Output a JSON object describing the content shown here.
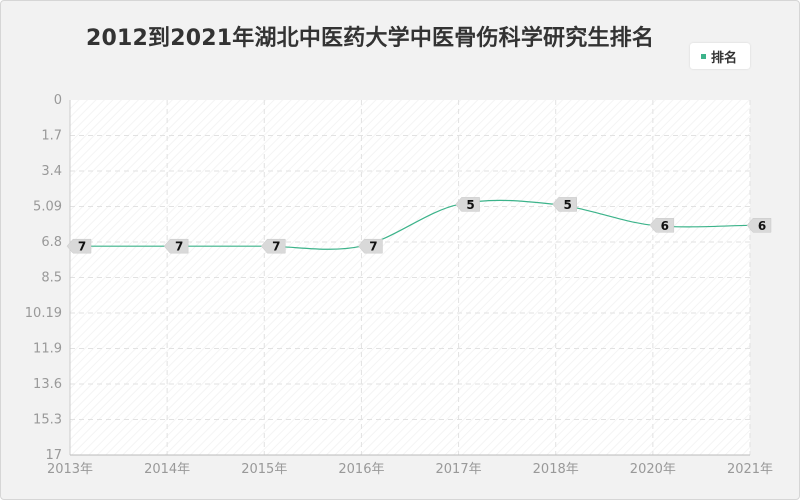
{
  "chart_data": {
    "type": "line",
    "title": "2012到2021年湖北中医药大学中医骨伤科学研究生排名",
    "categories": [
      "2013年",
      "2014年",
      "2015年",
      "2016年",
      "2017年",
      "2018年",
      "2020年",
      "2021年"
    ],
    "series": [
      {
        "name": "排名",
        "values": [
          7,
          7,
          7,
          7,
          5,
          5,
          6,
          6
        ]
      }
    ],
    "y_ticks": [
      "0",
      "1.7",
      "3.4",
      "5.09",
      "6.8",
      "8.5",
      "10.19",
      "11.9",
      "13.6",
      "15.3",
      "17"
    ],
    "ylim": [
      0,
      17
    ],
    "y_inverted": true,
    "grid": true,
    "legend_position": "top-right",
    "colors": {
      "series": "#3cb38a",
      "label_bg": "#d9d9d9",
      "grid": "#e2e2e2"
    }
  }
}
